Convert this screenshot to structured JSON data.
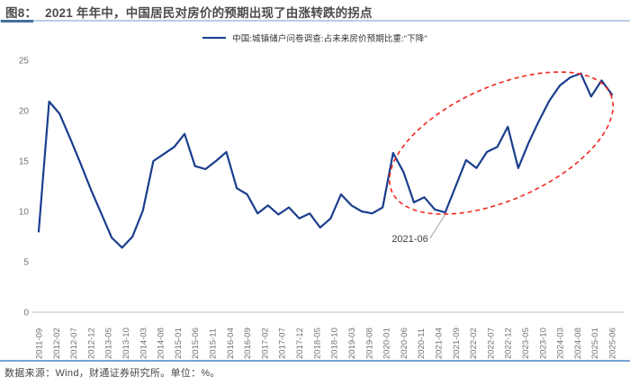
{
  "header": {
    "tag": "图8：",
    "title": "2021 年年中，中国居民对房价的预期出现了由涨转跌的拐点"
  },
  "legend": {
    "label": "中国:城镇储户问卷调查:占未来房价预期比重:\"下降\""
  },
  "footer": {
    "source": "数据来源：Wind，财通证券研究所。单位：%。"
  },
  "colors": {
    "line": "#1a3e8e",
    "ellipse": "#f4261c",
    "axis_line": "#c9c9c9",
    "axis_text": "#737373",
    "title_text": "#4c4c4c",
    "legend_text": "#333333",
    "footer_text": "#474747",
    "callout_line": "#a6a6a6",
    "callout_text": "#404040"
  },
  "chart_data": {
    "type": "line",
    "title": "2021 年年中，中国居民对房价的预期出现了由涨转跌的拐点",
    "series_name": "中国:城镇储户问卷调查:占未来房价预期比重:\"下降\"",
    "unit": "%",
    "ylim": [
      0,
      25
    ],
    "yticks": [
      0,
      5,
      10,
      15,
      20,
      25
    ],
    "grid": false,
    "legend_position": "top-center",
    "x": [
      "2011-09",
      "2011-12",
      "2012-03",
      "2012-06",
      "2012-09",
      "2012-12",
      "2013-03",
      "2013-06",
      "2013-09",
      "2013-12",
      "2014-03",
      "2014-06",
      "2014-09",
      "2014-12",
      "2015-03",
      "2015-06",
      "2015-09",
      "2015-12",
      "2016-03",
      "2016-06",
      "2016-09",
      "2016-12",
      "2017-03",
      "2017-06",
      "2017-09",
      "2017-12",
      "2018-03",
      "2018-06",
      "2018-09",
      "2018-12",
      "2019-03",
      "2019-06",
      "2019-09",
      "2019-12",
      "2020-03",
      "2020-06",
      "2020-09",
      "2020-12",
      "2021-03",
      "2021-06",
      "2021-09",
      "2021-12",
      "2022-03",
      "2022-06",
      "2022-09",
      "2022-12",
      "2023-03",
      "2023-06",
      "2023-09",
      "2023-12",
      "2024-03",
      "2024-06",
      "2024-09",
      "2024-12",
      "2025-03",
      "2025-06"
    ],
    "values": [
      8.0,
      20.9,
      19.7,
      17.3,
      14.8,
      12.2,
      9.8,
      7.4,
      6.4,
      7.5,
      10.1,
      15.0,
      15.7,
      16.4,
      17.7,
      14.5,
      14.2,
      15.0,
      15.9,
      12.3,
      11.7,
      9.8,
      10.6,
      9.7,
      10.4,
      9.3,
      9.8,
      8.4,
      9.3,
      11.7,
      10.6,
      10.0,
      9.8,
      10.4,
      15.8,
      13.9,
      10.9,
      11.4,
      10.2,
      9.9,
      12.5,
      15.1,
      14.3,
      15.9,
      16.4,
      18.4,
      14.3,
      16.8,
      19.0,
      21.0,
      22.5,
      23.3,
      23.7,
      21.4,
      23.0,
      21.6
    ],
    "x_tick_labels": [
      "2011-09",
      "2012-02",
      "2012-07",
      "2012-12",
      "2013-05",
      "2013-10",
      "2014-03",
      "2014-08",
      "2015-01",
      "2015-06",
      "2015-11",
      "2016-04",
      "2016-09",
      "2017-02",
      "2017-07",
      "2017-12",
      "2018-05",
      "2018-10",
      "2019-03",
      "2019-08",
      "2020-01",
      "2020-06",
      "2020-11",
      "2021-04",
      "2021-09",
      "2022-02",
      "2022-07",
      "2022-12",
      "2023-05",
      "2023-10",
      "2024-03",
      "2024-08",
      "2025-01",
      "2025-06"
    ],
    "annotation": {
      "text": "2021-06",
      "x": "2021-06",
      "value": 9.9
    },
    "highlight": {
      "shape": "dashed-ellipse",
      "note": "circles the rising trend from 2021-06 to 2025-06"
    }
  }
}
